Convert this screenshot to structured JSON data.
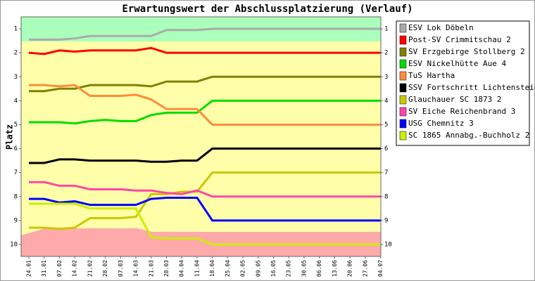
{
  "chart_data": {
    "type": "line",
    "title": "Erwartungswert der Abschlussplatzierung (Verlauf)",
    "y_label": "Platz",
    "categories": [
      "24.01",
      "31.01",
      "07.02",
      "14.02",
      "21.02",
      "28.02",
      "07.03",
      "14.03",
      "21.03",
      "28.03",
      "04.04",
      "11.04",
      "18.04",
      "25.04",
      "02.05",
      "09.05",
      "16.05",
      "23.05",
      "30.05",
      "06.06",
      "13.06",
      "20.06",
      "27.06",
      "04.07"
    ],
    "ylim": [
      0.5,
      10.5
    ],
    "inverted": true,
    "yticks": [
      1,
      2,
      3,
      4,
      5,
      6,
      7,
      8,
      9,
      10
    ],
    "series": [
      {
        "name": "ESV Lok Döbeln",
        "color": "#aaaaaa",
        "values": [
          1.45,
          1.45,
          1.45,
          1.4,
          1.3,
          1.3,
          1.3,
          1.3,
          1.3,
          1.05,
          1.05,
          1.05,
          1,
          1,
          1,
          1,
          1,
          1,
          1,
          1,
          1,
          1,
          1,
          1
        ]
      },
      {
        "name": "Post-SV Crimmitschau 2",
        "color": "#ff0000",
        "values": [
          2,
          2.05,
          1.9,
          1.95,
          1.9,
          1.9,
          1.9,
          1.9,
          1.8,
          2,
          2,
          2,
          2,
          2,
          2,
          2,
          2,
          2,
          2,
          2,
          2,
          2,
          2,
          2
        ]
      },
      {
        "name": "SV Erzgebirge Stollberg 2",
        "color": "#808000",
        "values": [
          3.6,
          3.6,
          3.5,
          3.5,
          3.35,
          3.35,
          3.35,
          3.35,
          3.4,
          3.2,
          3.2,
          3.2,
          3,
          3,
          3,
          3,
          3,
          3,
          3,
          3,
          3,
          3,
          3,
          3
        ]
      },
      {
        "name": "ESV Nickelhütte Aue 4",
        "color": "#00dd00",
        "values": [
          4.9,
          4.9,
          4.9,
          4.95,
          4.85,
          4.8,
          4.85,
          4.85,
          4.6,
          4.5,
          4.5,
          4.5,
          4,
          4,
          4,
          4,
          4,
          4,
          4,
          4,
          4,
          4,
          4,
          4
        ]
      },
      {
        "name": "TuS Hartha",
        "color": "#ff8c3c",
        "values": [
          3.35,
          3.35,
          3.4,
          3.35,
          3.8,
          3.8,
          3.8,
          3.75,
          3.95,
          4.35,
          4.35,
          4.35,
          5,
          5,
          5,
          5,
          5,
          5,
          5,
          5,
          5,
          5,
          5,
          5
        ]
      },
      {
        "name": "SSV Fortschritt Lichtenstein",
        "color": "#000000",
        "values": [
          6.6,
          6.6,
          6.45,
          6.45,
          6.5,
          6.5,
          6.5,
          6.5,
          6.55,
          6.55,
          6.5,
          6.5,
          6,
          6,
          6,
          6,
          6,
          6,
          6,
          6,
          6,
          6,
          6,
          6
        ]
      },
      {
        "name": "Glauchauer SC 1873 2",
        "color": "#c8c800",
        "values": [
          9.3,
          9.3,
          9.35,
          9.3,
          8.9,
          8.9,
          8.9,
          8.85,
          7.9,
          7.9,
          7.8,
          7.8,
          7,
          7,
          7,
          7,
          7,
          7,
          7,
          7,
          7,
          7,
          7,
          7
        ]
      },
      {
        "name": "SV Eiche Reichenbrand 3",
        "color": "#ff46aa",
        "values": [
          7.4,
          7.4,
          7.55,
          7.55,
          7.7,
          7.7,
          7.7,
          7.75,
          7.75,
          7.85,
          7.9,
          7.75,
          8,
          8,
          8,
          8,
          8,
          8,
          8,
          8,
          8,
          8,
          8,
          8
        ]
      },
      {
        "name": "USG Chemnitz 3",
        "color": "#0000ff",
        "values": [
          8.1,
          8.1,
          8.25,
          8.2,
          8.35,
          8.35,
          8.35,
          8.35,
          8.1,
          8.05,
          8.05,
          8.05,
          9,
          9,
          9,
          9,
          9,
          9,
          9,
          9,
          9,
          9,
          9,
          9
        ]
      },
      {
        "name": "SC 1865 Annabg.-Buchholz 2",
        "color": "#ccee00",
        "values": [
          8.3,
          8.3,
          8.3,
          8.3,
          8.5,
          8.5,
          8.5,
          8.5,
          9.7,
          9.75,
          9.75,
          9.75,
          10,
          10,
          10,
          10,
          10,
          10,
          10,
          10,
          10,
          10,
          10,
          10
        ]
      }
    ]
  }
}
